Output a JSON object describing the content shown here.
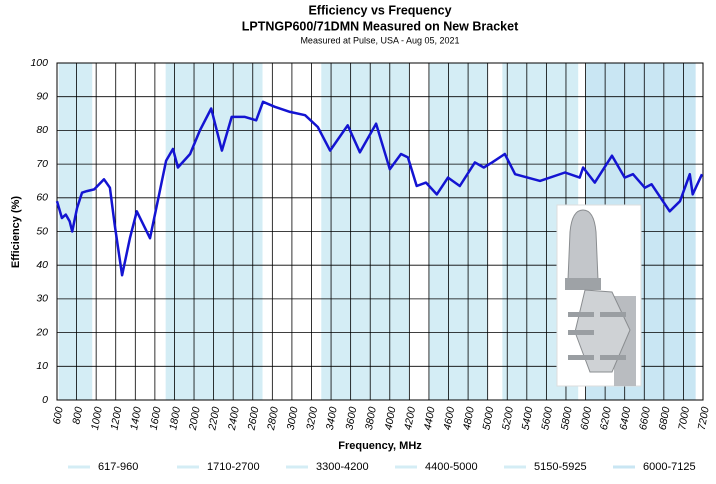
{
  "chart_data": {
    "type": "line",
    "title": "Efficiency vs Frequency",
    "subtitle": "LPTNGP600/71DMN Measured on New Bracket",
    "annotation": "Measured at Pulse, USA - Aug 05, 2021",
    "x_label": "Frequency, MHz",
    "y_label": "Efficiency (%)",
    "xlim": [
      600,
      7200
    ],
    "ylim": [
      0,
      100
    ],
    "xticks": [
      600,
      800,
      1000,
      1200,
      1400,
      1600,
      1800,
      2000,
      2200,
      2400,
      2600,
      2800,
      3000,
      3200,
      3400,
      3600,
      3800,
      4000,
      4200,
      4400,
      4600,
      4800,
      5000,
      5200,
      5400,
      5600,
      5800,
      6000,
      6200,
      6400,
      6600,
      6800,
      7000,
      7200
    ],
    "yticks": [
      0,
      10,
      20,
      30,
      40,
      50,
      60,
      70,
      80,
      90,
      100
    ],
    "grid": true,
    "bands": [
      {
        "name": "617-960",
        "range": [
          617,
          960
        ],
        "color": "#d4edf5"
      },
      {
        "name": "1710-2700",
        "range": [
          1710,
          2700
        ],
        "color": "#d4edf5"
      },
      {
        "name": "3300-4200",
        "range": [
          3300,
          4200
        ],
        "color": "#d4edf5"
      },
      {
        "name": "4400-5000",
        "range": [
          4400,
          5000
        ],
        "color": "#d4edf5"
      },
      {
        "name": "5150-5925",
        "range": [
          5150,
          5925
        ],
        "color": "#d4edf5"
      },
      {
        "name": "6000-7125",
        "range": [
          6000,
          7125
        ],
        "color": "#c9e6f3"
      }
    ],
    "x": [
      600,
      650,
      690,
      730,
      755,
      805,
      855,
      905,
      980,
      1080,
      1140,
      1190,
      1265,
      1345,
      1415,
      1550,
      1650,
      1715,
      1785,
      1835,
      1960,
      2060,
      2175,
      2285,
      2385,
      2520,
      2635,
      2705,
      2825,
      2980,
      3135,
      3265,
      3390,
      3570,
      3695,
      3860,
      4000,
      4115,
      4185,
      4275,
      4370,
      4480,
      4595,
      4715,
      4870,
      4960,
      5045,
      5175,
      5280,
      5535,
      5790,
      5940,
      5975,
      6095,
      6270,
      6400,
      6485,
      6605,
      6675,
      6860,
      6965,
      7065,
      7095,
      7190
    ],
    "series": [
      {
        "color": "#1414d2",
        "values": [
          59,
          54,
          55,
          53,
          50,
          57,
          61.5,
          62,
          62.5,
          65.5,
          63,
          52,
          37,
          48,
          56,
          48,
          62,
          71,
          74.5,
          69,
          73,
          80,
          86.5,
          74,
          84,
          84,
          83,
          88.5,
          87,
          85.5,
          84.5,
          81,
          74,
          81.5,
          73.5,
          82,
          68.5,
          73,
          72,
          63.5,
          64.5,
          61,
          66,
          63.5,
          70.5,
          69,
          70.5,
          73,
          67,
          65,
          67.5,
          66,
          69,
          64.5,
          72.5,
          66,
          67,
          63,
          64,
          56,
          59,
          67,
          61,
          67
        ]
      }
    ]
  }
}
